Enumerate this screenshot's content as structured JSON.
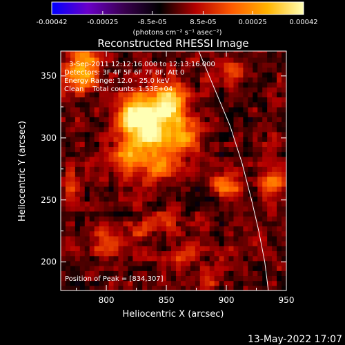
{
  "chart_data": {
    "type": "heatmap",
    "title": "Reconstructed RHESSI Image",
    "xlabel": "Heliocentric X (arcsec)",
    "ylabel": "Heliocentric Y (arcsec)",
    "xlim": [
      762,
      950
    ],
    "ylim": [
      177,
      370
    ],
    "x_ticks": [
      800,
      850,
      900,
      950
    ],
    "y_ticks": [
      200,
      250,
      300,
      350
    ],
    "x_tick_labels": [
      "800",
      "850",
      "900",
      "950"
    ],
    "y_tick_labels": [
      "200",
      "250",
      "300",
      "350"
    ],
    "colorbar": {
      "range": [
        -0.00042,
        0.00042
      ],
      "ticks": [
        -0.00042,
        -0.00025,
        -8.5e-05,
        8.5e-05,
        0.00025,
        0.00042
      ],
      "tick_labels": [
        "-0.00042",
        "-0.00025",
        "-8.5e-05",
        "8.5e-05",
        "0.00025",
        "0.00042"
      ],
      "unit_label": "(photons cm⁻² s⁻¹ asec⁻²)",
      "colors": [
        "#0000ff",
        "#6a00c8",
        "#3a0050",
        "#000000",
        "#b40000",
        "#ff5a00",
        "#ffb400",
        "#ffffb4"
      ]
    },
    "annotations": [
      "3-Sep-2011 12:12:16.000 to 12:13:16.000",
      "Detectors: 3F 4F 5F 6F 7F 8F, Att 0",
      "Energy Range: 12.0 - 25.0 keV",
      "Clean    Total counts: 1.53E+04"
    ],
    "peak_label": "Position of Peak = [834,307]",
    "peak": [
      834,
      307
    ],
    "limb": [
      [
        877,
        370
      ],
      [
        890,
        340
      ],
      [
        903,
        310
      ],
      [
        913,
        280
      ],
      [
        921,
        250
      ],
      [
        927,
        225
      ],
      [
        932,
        200
      ],
      [
        935,
        177
      ]
    ],
    "sources": [
      {
        "x": 838,
        "y": 307,
        "sx": 15,
        "sy": 18,
        "amp": 0.00042
      },
      {
        "x": 852,
        "y": 330,
        "sx": 10,
        "sy": 10,
        "amp": 0.0003
      },
      {
        "x": 822,
        "y": 320,
        "sx": 9,
        "sy": 10,
        "amp": 0.00028
      },
      {
        "x": 815,
        "y": 285,
        "sx": 8,
        "sy": 8,
        "amp": 0.00018
      },
      {
        "x": 868,
        "y": 300,
        "sx": 8,
        "sy": 12,
        "amp": 0.0002
      },
      {
        "x": 780,
        "y": 355,
        "sx": 10,
        "sy": 12,
        "amp": 0.00032
      },
      {
        "x": 845,
        "y": 275,
        "sx": 10,
        "sy": 8,
        "amp": 0.00015
      },
      {
        "x": 900,
        "y": 262,
        "sx": 8,
        "sy": 7,
        "amp": 0.0002
      },
      {
        "x": 938,
        "y": 263,
        "sx": 8,
        "sy": 9,
        "amp": 0.00022
      },
      {
        "x": 800,
        "y": 215,
        "sx": 9,
        "sy": 8,
        "amp": 0.00016
      },
      {
        "x": 850,
        "y": 232,
        "sx": 7,
        "sy": 6,
        "amp": 0.00014
      },
      {
        "x": 828,
        "y": 225,
        "sx": 6,
        "sy": 6,
        "amp": 0.00013
      },
      {
        "x": 863,
        "y": 205,
        "sx": 7,
        "sy": 6,
        "amp": 0.00014
      },
      {
        "x": 883,
        "y": 185,
        "sx": 6,
        "sy": 6,
        "amp": 0.00012
      },
      {
        "x": 770,
        "y": 265,
        "sx": 6,
        "sy": 8,
        "amp": 0.00012
      },
      {
        "x": 905,
        "y": 355,
        "sx": 8,
        "sy": 8,
        "amp": 0.0001
      }
    ]
  },
  "footer": {
    "timestamp": "13-May-2022 17:07"
  }
}
